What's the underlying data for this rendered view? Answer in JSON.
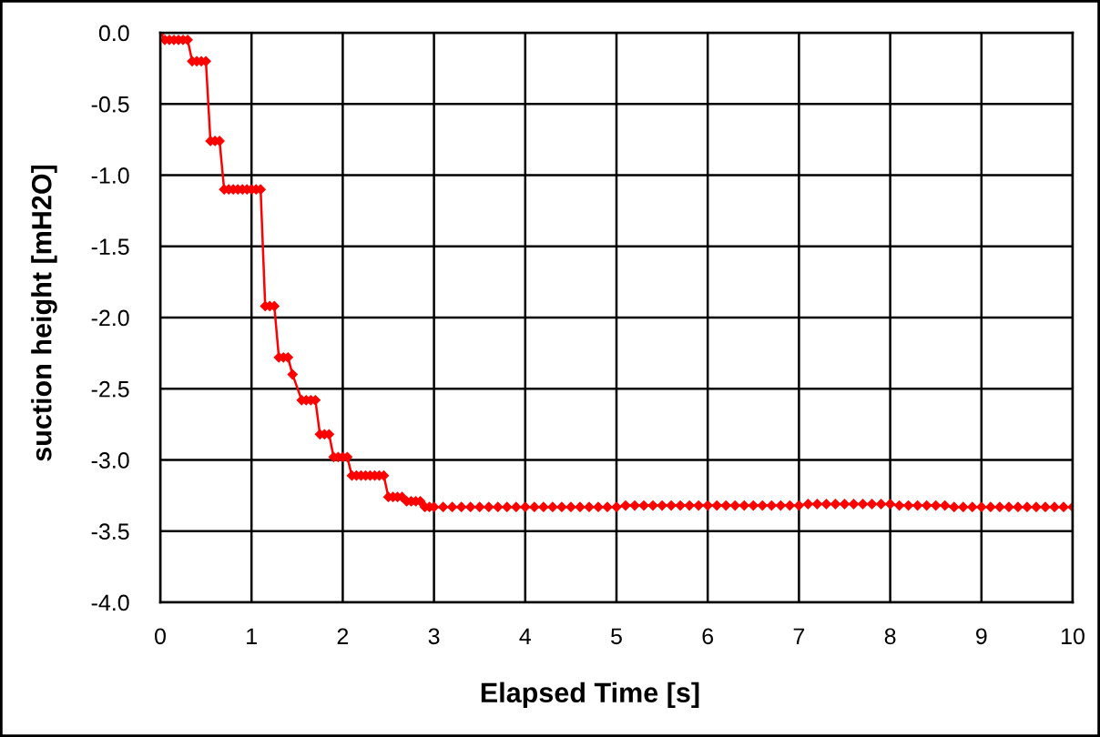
{
  "chart_data": {
    "type": "line",
    "xlabel": "Elapsed Time [s]",
    "ylabel": "suction height [mH2O]",
    "x": [
      0,
      0.05,
      0.1,
      0.15,
      0.2,
      0.25,
      0.3,
      0.35,
      0.4,
      0.45,
      0.5,
      0.55,
      0.6,
      0.65,
      0.7,
      0.75,
      0.8,
      0.85,
      0.9,
      0.95,
      1.0,
      1.05,
      1.1,
      1.15,
      1.2,
      1.25,
      1.3,
      1.35,
      1.4,
      1.45,
      1.55,
      1.6,
      1.65,
      1.7,
      1.75,
      1.8,
      1.85,
      1.9,
      1.95,
      2.0,
      2.05,
      2.1,
      2.15,
      2.2,
      2.25,
      2.3,
      2.35,
      2.4,
      2.45,
      2.5,
      2.55,
      2.6,
      2.65,
      2.7,
      2.75,
      2.8,
      2.85,
      2.9,
      2.95,
      3.0,
      3.1,
      3.2,
      3.3,
      3.4,
      3.5,
      3.6,
      3.7,
      3.8,
      3.9,
      4.0,
      4.1,
      4.2,
      4.3,
      4.4,
      4.5,
      4.6,
      4.7,
      4.8,
      4.9,
      5.0,
      5.1,
      5.2,
      5.3,
      5.4,
      5.5,
      5.6,
      5.7,
      5.8,
      5.9,
      6.0,
      6.1,
      6.2,
      6.3,
      6.4,
      6.5,
      6.6,
      6.7,
      6.8,
      6.9,
      7.0,
      7.1,
      7.2,
      7.3,
      7.4,
      7.5,
      7.6,
      7.7,
      7.8,
      7.9,
      8.0,
      8.1,
      8.2,
      8.3,
      8.4,
      8.5,
      8.6,
      8.7,
      8.8,
      8.9,
      9.0,
      9.1,
      9.2,
      9.3,
      9.4,
      9.5,
      9.6,
      9.7,
      9.8,
      9.9,
      10.0
    ],
    "series": [
      {
        "color": "#ff0000",
        "values": [
          0,
          -0.05,
          -0.05,
          -0.05,
          -0.05,
          -0.05,
          -0.05,
          -0.2,
          -0.2,
          -0.2,
          -0.2,
          -0.76,
          -0.76,
          -0.76,
          -1.1,
          -1.1,
          -1.1,
          -1.1,
          -1.1,
          -1.1,
          -1.1,
          -1.1,
          -1.1,
          -1.92,
          -1.92,
          -1.92,
          -2.28,
          -2.28,
          -2.28,
          -2.4,
          -2.58,
          -2.58,
          -2.58,
          -2.58,
          -2.82,
          -2.82,
          -2.82,
          -2.98,
          -2.98,
          -2.98,
          -2.98,
          -3.11,
          -3.11,
          -3.11,
          -3.11,
          -3.11,
          -3.11,
          -3.11,
          -3.11,
          -3.26,
          -3.26,
          -3.26,
          -3.26,
          -3.29,
          -3.29,
          -3.29,
          -3.29,
          -3.33,
          -3.33,
          -3.33,
          -3.33,
          -3.33,
          -3.33,
          -3.33,
          -3.33,
          -3.33,
          -3.33,
          -3.33,
          -3.33,
          -3.33,
          -3.33,
          -3.33,
          -3.33,
          -3.33,
          -3.33,
          -3.33,
          -3.33,
          -3.33,
          -3.33,
          -3.33,
          -3.32,
          -3.32,
          -3.32,
          -3.32,
          -3.32,
          -3.32,
          -3.32,
          -3.32,
          -3.32,
          -3.32,
          -3.32,
          -3.32,
          -3.32,
          -3.32,
          -3.32,
          -3.32,
          -3.32,
          -3.32,
          -3.32,
          -3.32,
          -3.31,
          -3.31,
          -3.31,
          -3.31,
          -3.31,
          -3.31,
          -3.31,
          -3.31,
          -3.31,
          -3.31,
          -3.32,
          -3.32,
          -3.32,
          -3.32,
          -3.32,
          -3.32,
          -3.33,
          -3.33,
          -3.33,
          -3.33,
          -3.33,
          -3.33,
          -3.33,
          -3.33,
          -3.33,
          -3.33,
          -3.33,
          -3.33,
          -3.33,
          -3.33
        ]
      }
    ],
    "xlim": [
      0,
      10
    ],
    "ylim": [
      -4,
      0
    ],
    "xticks": [
      0,
      1,
      2,
      3,
      4,
      5,
      6,
      7,
      8,
      9,
      10
    ],
    "yticks": [
      {
        "value": 0,
        "label": "0.0"
      },
      {
        "value": -0.5,
        "label": "-0.5"
      },
      {
        "value": -1,
        "label": "-1.0"
      },
      {
        "value": -1.5,
        "label": "-1.5"
      },
      {
        "value": -2,
        "label": "-2.0"
      },
      {
        "value": -2.5,
        "label": "-2.5"
      },
      {
        "value": -3,
        "label": "-3.0"
      },
      {
        "value": -3.5,
        "label": "-3.5"
      },
      {
        "value": -4,
        "label": "-4.0"
      }
    ],
    "grid": true,
    "marker": "diamond",
    "line_style": "solid"
  }
}
